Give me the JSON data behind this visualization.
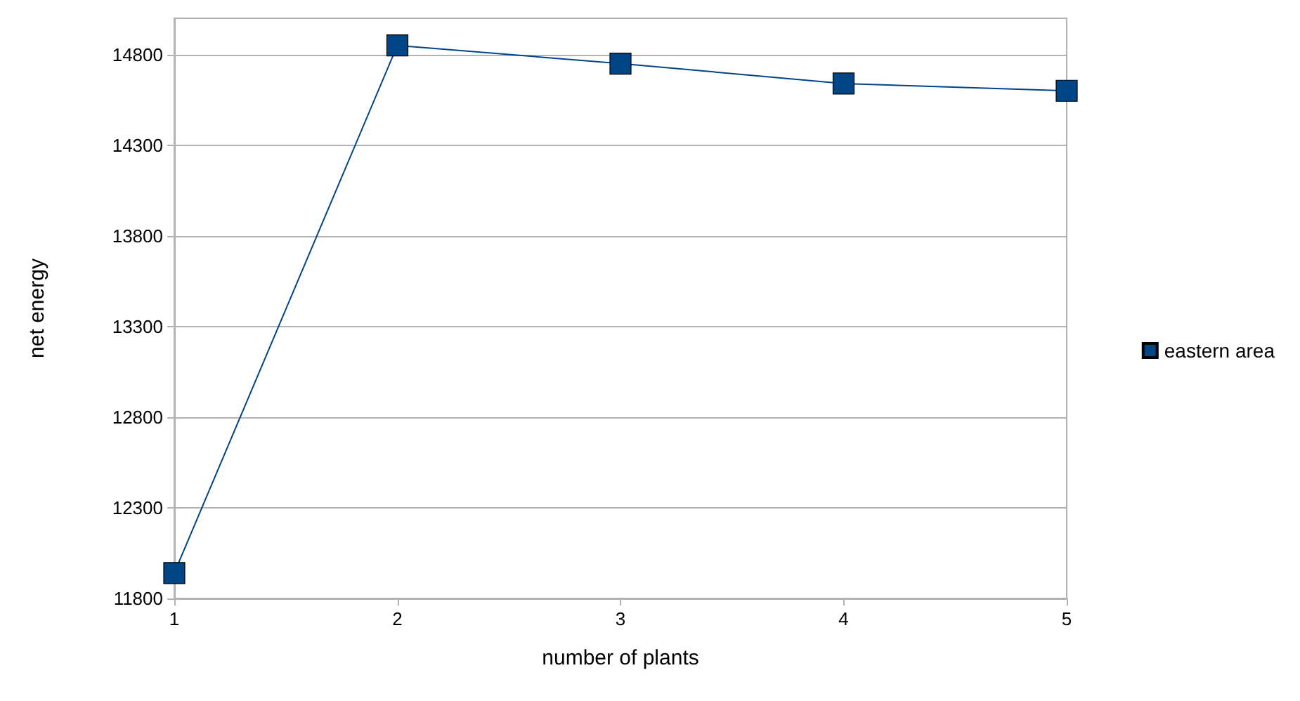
{
  "chart_data": {
    "type": "line",
    "xlabel": "number of plants",
    "ylabel": "net energy",
    "x": [
      1,
      2,
      3,
      4,
      5
    ],
    "series": [
      {
        "name": "eastern area",
        "color": "#004586",
        "values": [
          11940,
          14850,
          14750,
          14640,
          14600
        ]
      }
    ],
    "xlim": [
      1,
      5
    ],
    "xticks": [
      1,
      2,
      3,
      4,
      5
    ],
    "ylim": [
      11800,
      15000
    ],
    "yticks": [
      11800,
      12300,
      12800,
      13300,
      13800,
      14300,
      14800
    ],
    "grid": "y",
    "legend": "right",
    "marker": "square",
    "line_style": "solid"
  }
}
